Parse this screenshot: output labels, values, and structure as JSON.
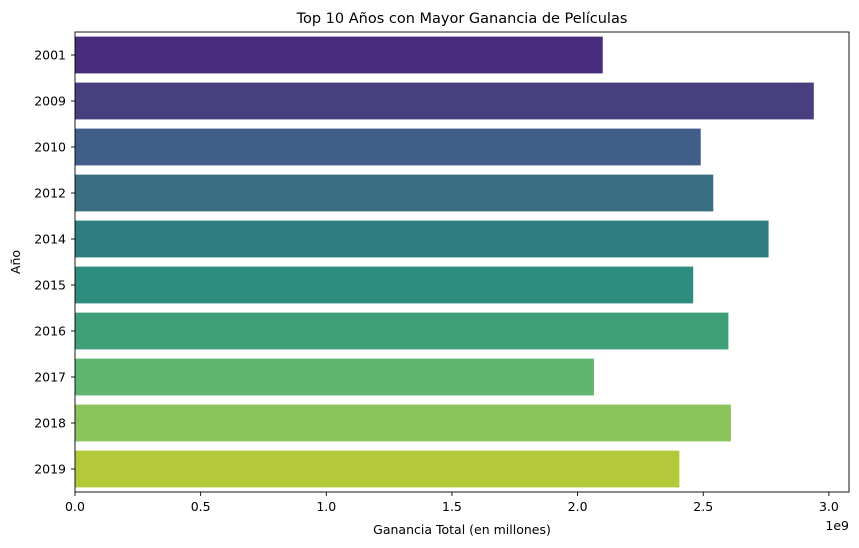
{
  "chart_data": {
    "type": "bar",
    "orientation": "horizontal",
    "title": "Top 10 Años con Mayor Ganancia de Películas",
    "xlabel": "Ganancia Total (en millones)",
    "ylabel": "Año",
    "x_offset_label": "1e9",
    "categories": [
      "2001",
      "2009",
      "2010",
      "2012",
      "2014",
      "2015",
      "2016",
      "2017",
      "2018",
      "2019"
    ],
    "values": [
      2100000000.0,
      2940000000.0,
      2490000000.0,
      2540000000.0,
      2760000000.0,
      2460000000.0,
      2600000000.0,
      2065000000.0,
      2610000000.0,
      2405000000.0
    ],
    "colors": [
      "#472d7b",
      "#48407e",
      "#415e8a",
      "#3a6f83",
      "#2e7d80",
      "#2e8d7f",
      "#3e9f79",
      "#5fb670",
      "#8ac45a",
      "#b3c93a"
    ],
    "xlim": [
      0,
      3080000000.0
    ],
    "xticks": [
      0,
      500000000.0,
      1000000000.0,
      1500000000.0,
      2000000000.0,
      2500000000.0,
      3000000000.0
    ],
    "xtick_labels": [
      "0.0",
      "0.5",
      "1.0",
      "1.5",
      "2.0",
      "2.5",
      "3.0"
    ],
    "grid": false,
    "legend": "none"
  }
}
